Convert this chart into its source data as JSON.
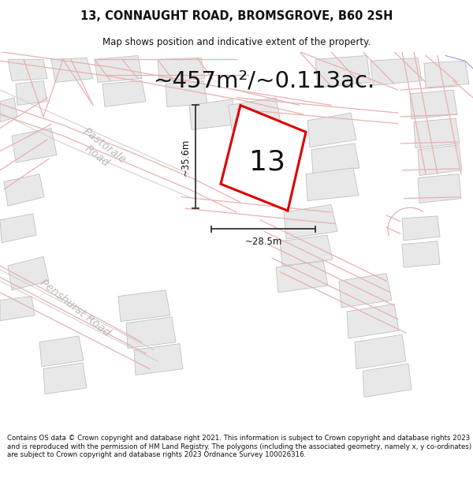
{
  "title": "13, CONNAUGHT ROAD, BROMSGROVE, B60 2SH",
  "subtitle": "Map shows position and indicative extent of the property.",
  "area_text": "~457m²/~0.113ac.",
  "number_label": "13",
  "dim_width": "~28.5m",
  "dim_height": "~35.6m",
  "road_label_1": "Pastorale\nRoad",
  "road_label_2": "Penshurst Road",
  "footer": "Contains OS data © Crown copyright and database right 2021. This information is subject to Crown copyright and database rights 2023 and is reproduced with the permission of HM Land Registry. The polygons (including the associated geometry, namely x, y co-ordinates) are subject to Crown copyright and database rights 2023 Ordnance Survey 100026316.",
  "bg_color": "#ffffff",
  "map_bg": "#ffffff",
  "cadastral_color": "#e8b0b0",
  "gray_line_color": "#c0c0c0",
  "highlight_color": "#dd0000",
  "plot_color": "#ffffff",
  "dim_line_color": "#333333",
  "text_color": "#111111",
  "road_text_color": "#bbbbbb",
  "title_fontsize": 10.5,
  "subtitle_fontsize": 8.5,
  "area_fontsize": 21,
  "number_fontsize": 26,
  "footer_fontsize": 6.2,
  "road_label_fontsize": 10
}
